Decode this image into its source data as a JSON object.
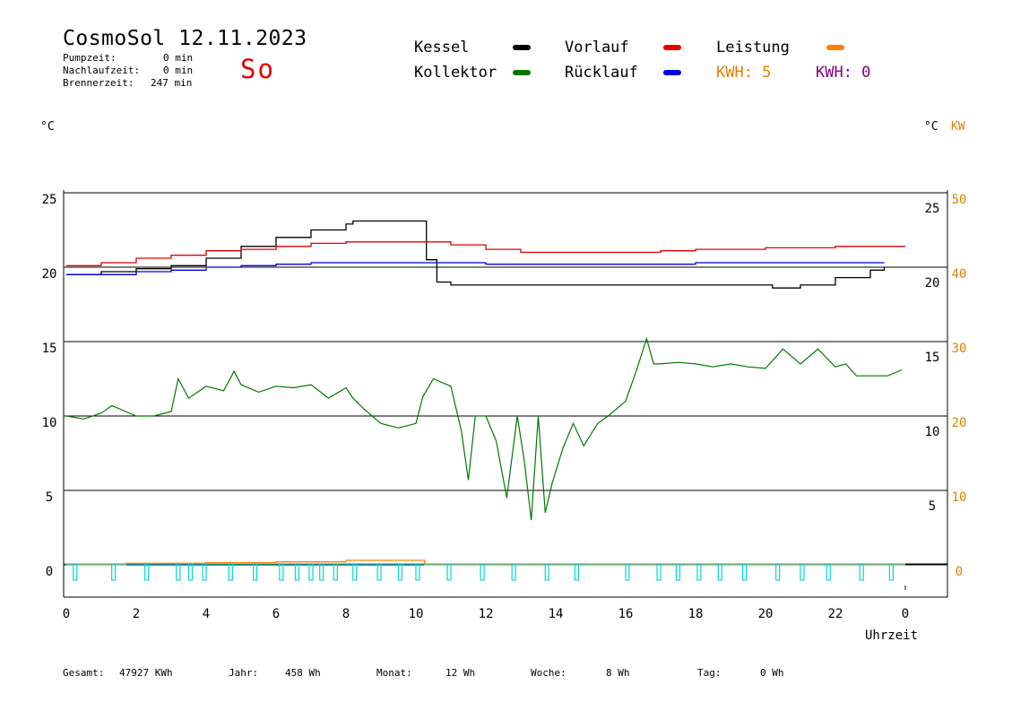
{
  "header": {
    "title": "CosmoSol 12.11.2023",
    "pumpzeit_label": "Pumpzeit:",
    "pumpzeit_value": "0 min",
    "nachlaufzeit_label": "Nachlaufzeit:",
    "nachlaufzeit_value": "0 min",
    "brennerzeit_label": "Brennerzeit:",
    "brennerzeit_value": "247 min",
    "weekday": "So"
  },
  "legend": {
    "kessel": "Kessel",
    "kollektor": "Kollektor",
    "vorlauf": "Vorlauf",
    "ruecklauf": "Rücklauf",
    "leistung": "Leistung",
    "kwh_orange": "KWH: 5",
    "kwh_purple": "KWH: 0"
  },
  "colors": {
    "kessel": "#000000",
    "kollektor": "#007800",
    "vorlauf": "#e00000",
    "ruecklauf": "#0000e0",
    "leistung": "#ff8000",
    "pump": "#00d8d8",
    "kwh_purple": "#800080"
  },
  "axes": {
    "left_unit": "°C",
    "right_unit_c": "°C",
    "right_unit_kw": "KW",
    "x_title": "Uhrzeit"
  },
  "footer": {
    "gesamt_label": "Gesamt:",
    "gesamt_value": "47927 KWh",
    "jahr_label": "Jahr:",
    "jahr_value": "458 Wh",
    "monat_label": "Monat:",
    "monat_value": "12 Wh",
    "woche_label": "Woche:",
    "woche_value": "8 Wh",
    "tag_label": "Tag:",
    "tag_value": "0 Wh"
  },
  "chart_data": {
    "type": "line",
    "title": "CosmoSol 12.11.2023",
    "xlabel": "Uhrzeit",
    "ylabel": "°C",
    "xlim": [
      0,
      24
    ],
    "ylim": [
      -2,
      25
    ],
    "x_ticks": [
      "0",
      "2",
      "4",
      "6",
      "8",
      "10",
      "12",
      "14",
      "16",
      "18",
      "20",
      "22",
      "0"
    ],
    "y_left_ticks": [
      "25",
      "20",
      "15",
      "10",
      "5",
      "0"
    ],
    "y_right_celsius_ticks": [
      "25",
      "20",
      "15",
      "10",
      "5"
    ],
    "y_right_kw_ticks": [
      "50",
      "40",
      "30",
      "20",
      "10",
      "0"
    ],
    "grid_y": [
      25,
      20,
      15,
      10,
      5,
      0
    ],
    "series": [
      {
        "name": "Kessel",
        "color": "#000000",
        "x": [
          0,
          1,
          2,
          3,
          4,
          5,
          6,
          7,
          8,
          8.2,
          9,
          10,
          10.15,
          10.3,
          10.6,
          11,
          12,
          14,
          16,
          18,
          19.5,
          20,
          20.2,
          21,
          22,
          23,
          23.4
        ],
        "y": [
          19.5,
          19.7,
          19.9,
          20.1,
          20.6,
          21.4,
          22.0,
          22.5,
          22.9,
          23.1,
          23.1,
          23.1,
          23.1,
          20.5,
          19.0,
          18.8,
          18.8,
          18.8,
          18.8,
          18.8,
          18.8,
          18.8,
          18.6,
          18.8,
          19.3,
          19.8,
          20.0
        ]
      },
      {
        "name": "Vorlauf",
        "color": "#e00000",
        "x": [
          0,
          1,
          2,
          3,
          4,
          5,
          6,
          7,
          8,
          9,
          10,
          10.2,
          11,
          12,
          13,
          14,
          15,
          16,
          17,
          18,
          19,
          20,
          21,
          22,
          23,
          24
        ],
        "y": [
          20.1,
          20.3,
          20.6,
          20.8,
          21.1,
          21.2,
          21.4,
          21.6,
          21.7,
          21.7,
          21.7,
          21.7,
          21.5,
          21.2,
          21.0,
          21.0,
          21.0,
          21.0,
          21.1,
          21.2,
          21.2,
          21.3,
          21.3,
          21.4,
          21.4,
          21.4
        ]
      },
      {
        "name": "Rücklauf",
        "color": "#0000e0",
        "x": [
          0,
          1,
          2,
          3,
          4,
          5,
          6,
          7,
          8,
          9,
          10,
          11,
          12,
          13,
          14,
          15,
          16,
          17,
          18,
          19,
          20,
          21,
          22,
          23,
          23.4
        ],
        "y": [
          19.5,
          19.5,
          19.7,
          19.8,
          20.0,
          20.1,
          20.2,
          20.3,
          20.3,
          20.3,
          20.3,
          20.3,
          20.2,
          20.2,
          20.2,
          20.2,
          20.2,
          20.2,
          20.3,
          20.3,
          20.3,
          20.3,
          20.3,
          20.3,
          20.3
        ]
      },
      {
        "name": "Kollektor",
        "color": "#007800",
        "x": [
          0,
          0.5,
          1,
          1.3,
          2,
          2.5,
          3,
          3.2,
          3.5,
          4,
          4.5,
          4.8,
          5,
          5.5,
          6,
          6.5,
          7,
          7.5,
          8,
          8.2,
          8.5,
          9,
          9.5,
          10,
          10.2,
          10.5,
          11,
          11.3,
          11.5,
          11.7,
          12,
          12.3,
          12.6,
          12.9,
          13.1,
          13.3,
          13.5,
          13.7,
          13.9,
          14.2,
          14.5,
          14.8,
          15.2,
          15.5,
          16,
          16.3,
          16.6,
          16.8,
          17,
          17.5,
          18,
          18.5,
          19,
          19.5,
          20,
          20.5,
          21,
          21.5,
          22,
          22.3,
          22.6,
          23,
          23.5,
          23.9
        ],
        "y": [
          10.0,
          9.8,
          10.2,
          10.7,
          10.0,
          10.0,
          10.3,
          12.5,
          11.2,
          12.0,
          11.7,
          13.0,
          12.1,
          11.6,
          12.0,
          11.9,
          12.1,
          11.2,
          11.9,
          11.2,
          10.5,
          9.5,
          9.2,
          9.5,
          11.3,
          12.5,
          12.0,
          9.0,
          5.7,
          10.0,
          10.0,
          8.3,
          4.5,
          10.0,
          7.0,
          3.0,
          10.0,
          3.5,
          5.5,
          7.8,
          9.5,
          8.0,
          9.5,
          10.0,
          11.0,
          13.0,
          15.2,
          13.5,
          13.5,
          13.6,
          13.5,
          13.3,
          13.5,
          13.3,
          13.2,
          14.5,
          13.5,
          14.5,
          13.3,
          13.5,
          12.7,
          12.7,
          12.7,
          13.1
        ]
      },
      {
        "name": "Leistung",
        "color": "#ff8000",
        "x": [
          0,
          1.6,
          1.7,
          3,
          4,
          5,
          6,
          7,
          8,
          10.2,
          10.25,
          24
        ],
        "y": [
          0,
          0,
          0.1,
          0.1,
          0.15,
          0.15,
          0.2,
          0.2,
          0.3,
          0.3,
          0,
          0
        ]
      }
    ],
    "pump_pulses_hours": [
      0.25,
      1.35,
      2.3,
      3.2,
      3.55,
      3.95,
      4.7,
      5.4,
      6.15,
      6.6,
      7.0,
      7.3,
      7.7,
      8.25,
      8.95,
      9.55,
      10.05,
      10.95,
      11.9,
      12.8,
      13.75,
      14.6,
      16.05,
      16.95,
      17.5,
      18.1,
      18.7,
      19.4,
      20.35,
      21.05,
      21.8,
      22.75,
      23.6
    ],
    "legend_position": "top"
  }
}
